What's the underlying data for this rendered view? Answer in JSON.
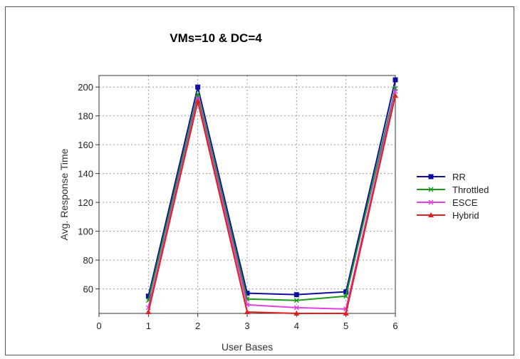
{
  "chart_data": {
    "type": "line",
    "title": "VMs=10 & DC=4",
    "xlabel": "User Bases",
    "ylabel": "Avg. Response Time",
    "x": [
      1,
      2,
      3,
      4,
      5,
      6
    ],
    "xlim": [
      0,
      6
    ],
    "ylim": [
      43,
      208
    ],
    "xticks": [
      "0",
      "1",
      "2",
      "3",
      "4",
      "5",
      "6"
    ],
    "yticks": [
      60,
      80,
      100,
      120,
      140,
      160,
      180,
      200
    ],
    "grid": true,
    "legend_position": "right",
    "series": [
      {
        "name": "RR",
        "color": "#1010a0",
        "marker": "square",
        "values": [
          55,
          200,
          57,
          56,
          58,
          205
        ]
      },
      {
        "name": "Throttled",
        "color": "#1a9a1a",
        "marker": "x",
        "values": [
          52,
          195,
          53,
          52,
          55,
          199
        ]
      },
      {
        "name": "ESCE",
        "color": "#e040e0",
        "marker": "x",
        "values": [
          47,
          192,
          49,
          47,
          46,
          197
        ]
      },
      {
        "name": "Hybrid",
        "color": "#e02020",
        "marker": "triangle",
        "values": [
          44,
          190,
          44,
          43,
          43,
          194
        ]
      }
    ]
  }
}
